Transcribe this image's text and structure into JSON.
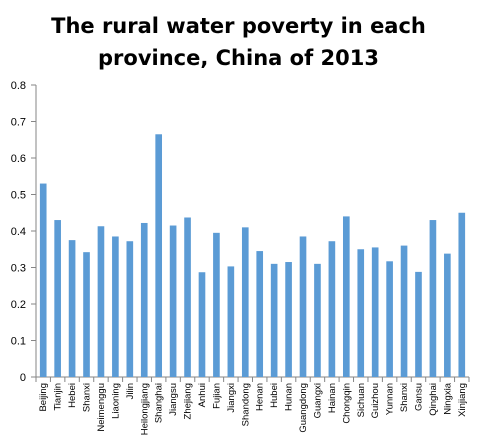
{
  "chart_data": {
    "type": "bar",
    "title_line1": "The rural water poverty in each",
    "title_line2": "province, China of 2013",
    "categories": [
      "Beijing",
      "Tianjin",
      "Hebei",
      "Shanxi",
      "Neimenggu",
      "Liaoning",
      "Jilin",
      "Heilongjiang",
      "Shanghai",
      "Jiangsu",
      "Zhejiang",
      "Anhui",
      "Fujian",
      "Jiangxi",
      "Shandong",
      "Henan",
      "Hubei",
      "Hunan",
      "Guangdong",
      "Guangxi",
      "Hainan",
      "Chongqin",
      "Sichuan",
      "Guizhou",
      "Yunnan",
      "Shanxi",
      "Gansu",
      "Qinghai",
      "Ningxia",
      "Xinjiang"
    ],
    "values": [
      0.53,
      0.43,
      0.375,
      0.342,
      0.413,
      0.385,
      0.372,
      0.422,
      0.665,
      0.415,
      0.437,
      0.287,
      0.395,
      0.303,
      0.41,
      0.345,
      0.31,
      0.315,
      0.385,
      0.31,
      0.372,
      0.44,
      0.35,
      0.355,
      0.317,
      0.36,
      0.288,
      0.43,
      0.338,
      0.45
    ],
    "yticks": [
      "0",
      "0.1",
      "0.2",
      "0.3",
      "0.4",
      "0.5",
      "0.6",
      "0.7",
      "0.8"
    ],
    "ylim": [
      0,
      0.8
    ],
    "bar_color": "#5b9bd5",
    "axis_color": "#868686",
    "grid": false,
    "legend": "none"
  }
}
